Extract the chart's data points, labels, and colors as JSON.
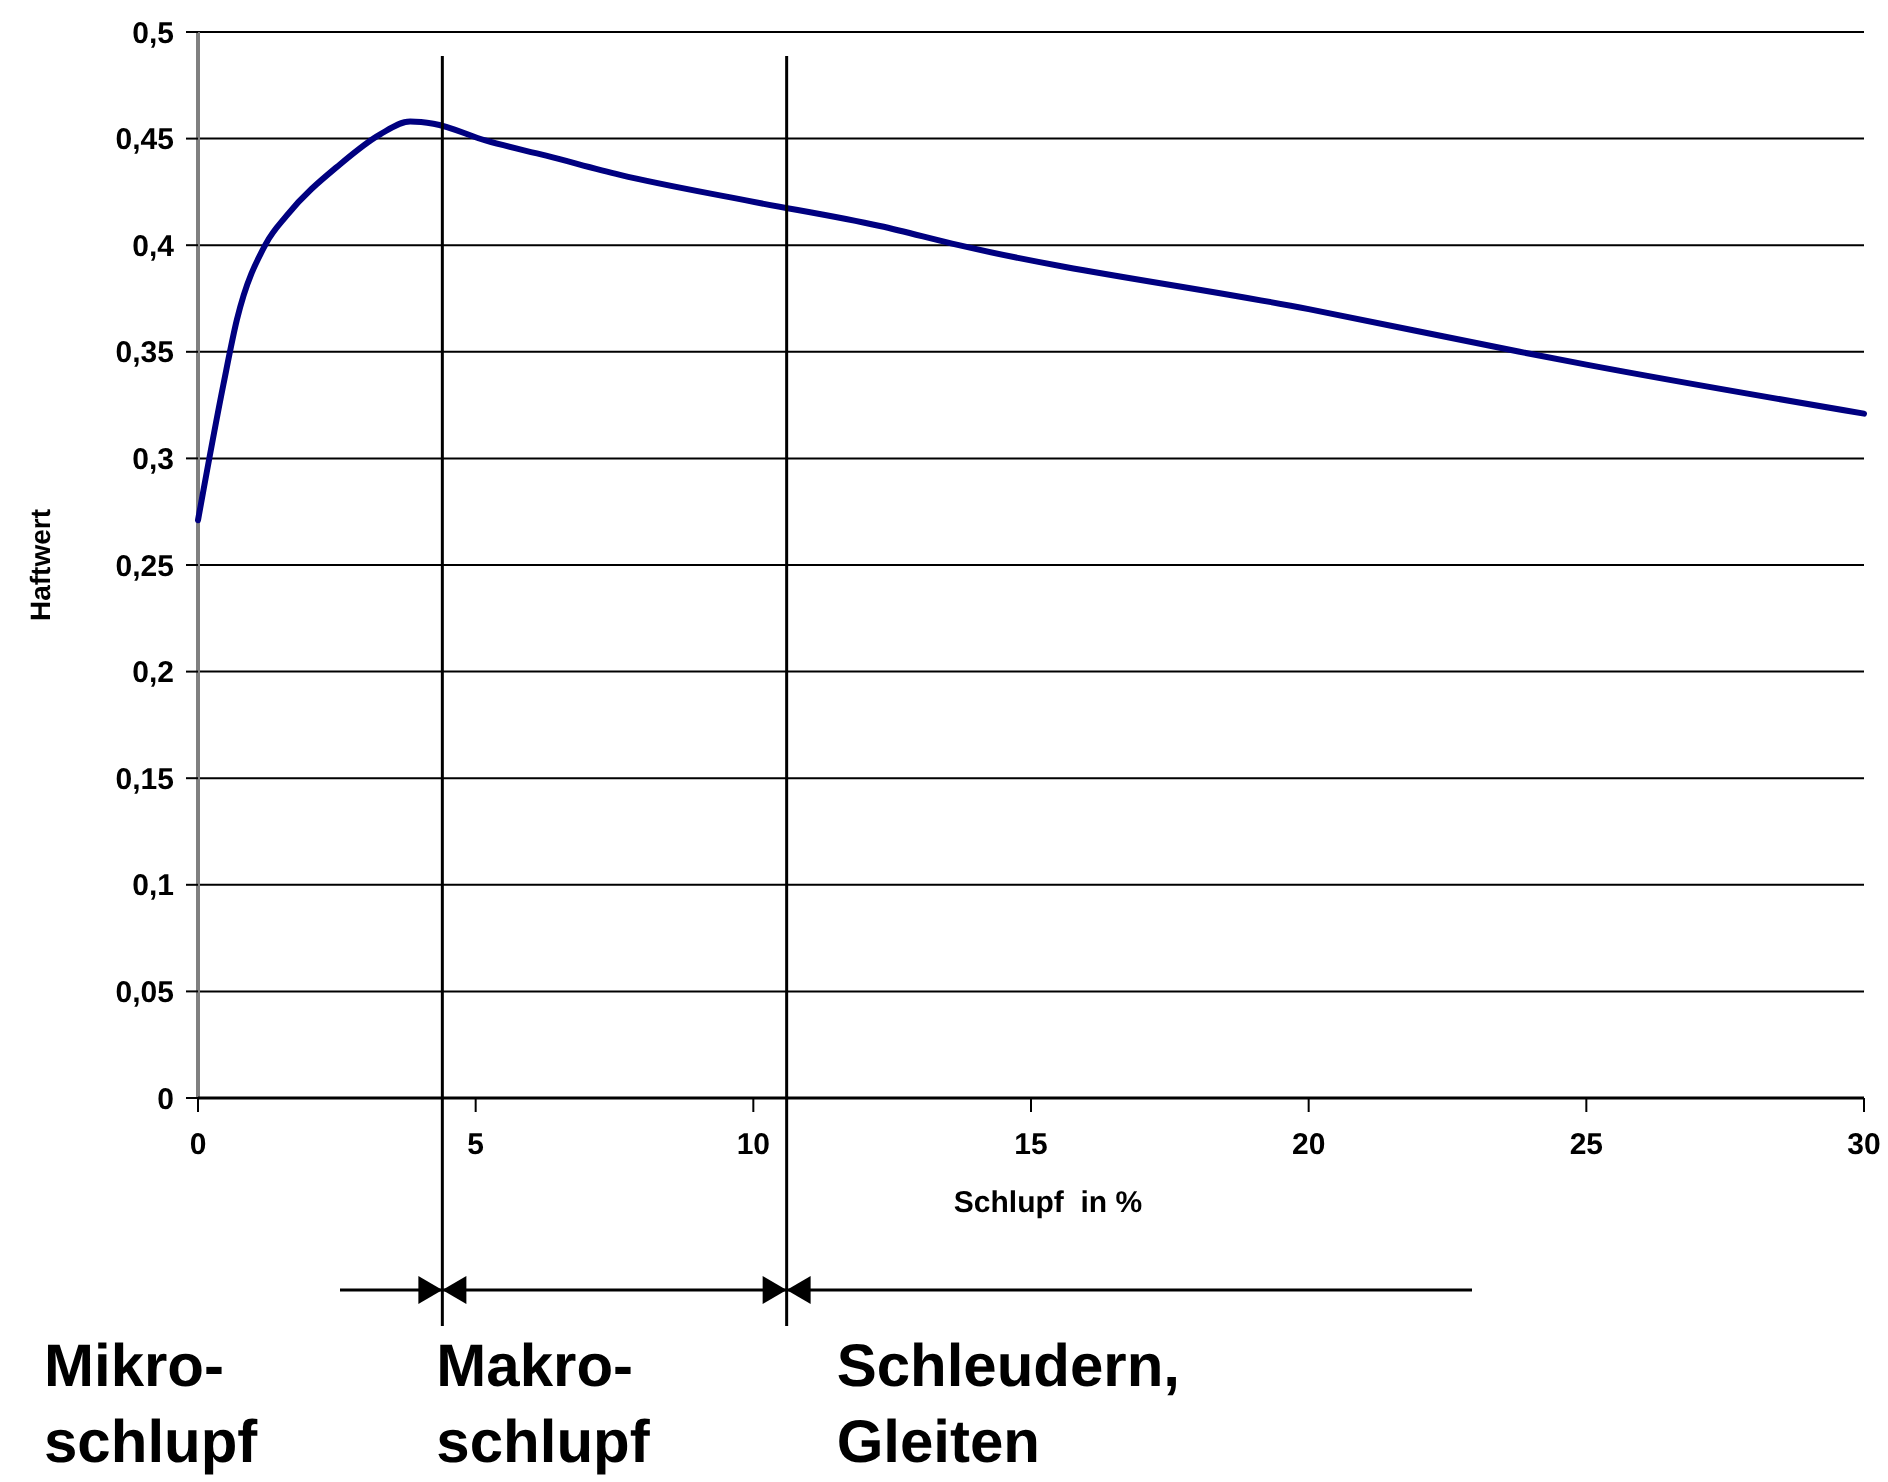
{
  "chart_data": {
    "type": "line",
    "ylabel": "Haftwert",
    "xlabel": "Schlupf  in %",
    "x": [
      0,
      0.46,
      0.7,
      1.23,
      1.6,
      2.56,
      3.28,
      3.82,
      4.24,
      5.19,
      6.27,
      7.6,
      9.87,
      12.28,
      13.7,
      20,
      23.8,
      25,
      30
    ],
    "series": [
      {
        "color": "#000080",
        "values": [
          0.271,
          0.335,
          0.365,
          0.401,
          0.414,
          0.438,
          0.452,
          0.458,
          0.457,
          0.449,
          0.442,
          0.433,
          0.421,
          0.409,
          0.4,
          0.37,
          0.35,
          0.344,
          0.321
        ]
      }
    ],
    "xlim": [
      0,
      30
    ],
    "xticks": [
      0,
      5,
      10,
      15,
      20,
      25,
      30
    ],
    "ylim": [
      0,
      0.5
    ],
    "yticks": [
      {
        "value": 0,
        "label": "0"
      },
      {
        "value": 0.05,
        "label": "0,05"
      },
      {
        "value": 0.1,
        "label": "0,1"
      },
      {
        "value": 0.15,
        "label": "0,15"
      },
      {
        "value": 0.2,
        "label": "0,2"
      },
      {
        "value": 0.25,
        "label": "0,25"
      },
      {
        "value": 0.3,
        "label": "0,3"
      },
      {
        "value": 0.35,
        "label": "0,35"
      },
      {
        "value": 0.4,
        "label": "0,4"
      },
      {
        "value": 0.45,
        "label": "0,45"
      },
      {
        "value": 0.5,
        "label": "0,5"
      }
    ],
    "grid": "y",
    "marker": "none",
    "line_style": "solid",
    "ref_lines": [
      {
        "axis": "x",
        "value": 4.4,
        "color": "#000000"
      },
      {
        "axis": "x",
        "value": 10.6,
        "color": "#000000"
      }
    ],
    "annotations": [
      "Mikro-\nschlupf",
      "Makro-\nschlupf",
      "Schleudern,\nGleiten"
    ]
  }
}
